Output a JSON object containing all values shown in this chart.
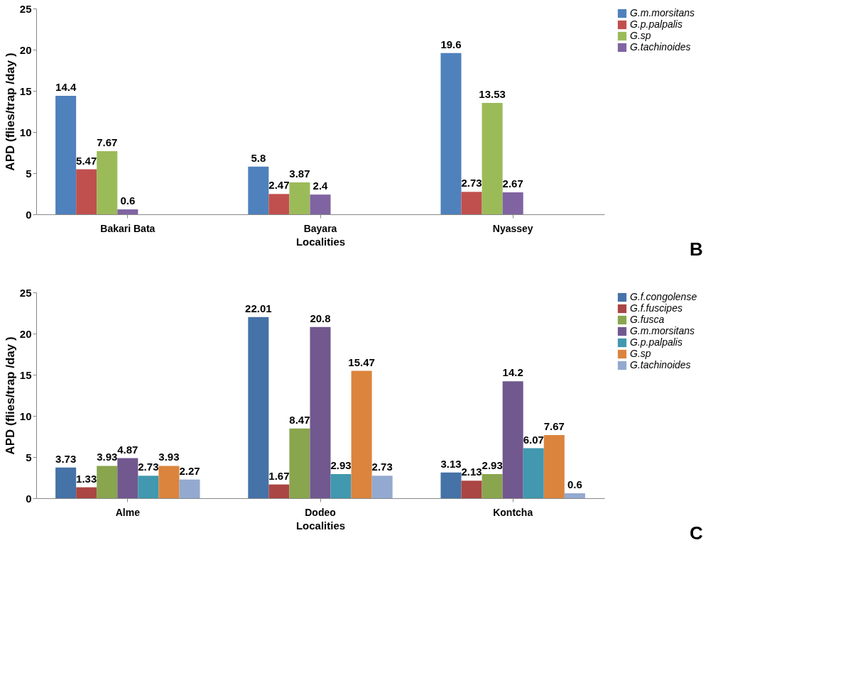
{
  "chart_data": [
    {
      "type": "bar",
      "xlabel": "Localities",
      "ylabel": "APD (flies/trap /day )",
      "categories": [
        "Bakari Bata",
        "Bayara",
        "Nyassey"
      ],
      "ylim": [
        0,
        25
      ],
      "yticks": [
        0,
        5,
        10,
        15,
        20,
        25
      ],
      "grid": false,
      "legend": "top right",
      "data_labels": true,
      "annotations": [
        "B"
      ],
      "series": [
        {
          "name": "G.m.morsitans",
          "color": "#4f81bd",
          "values": [
            14.4,
            5.8,
            19.6
          ]
        },
        {
          "name": "G.p.palpalis",
          "color": "#c0504d",
          "values": [
            5.47,
            2.47,
            2.73
          ]
        },
        {
          "name": "G.sp",
          "color": "#9bbb59",
          "values": [
            7.67,
            3.87,
            13.53
          ]
        },
        {
          "name": "G.tachinoides",
          "color": "#8064a2",
          "values": [
            0.6,
            2.4,
            2.67
          ]
        }
      ]
    },
    {
      "type": "bar",
      "xlabel": "Localities",
      "ylabel": "APD (flies/trap /day )",
      "categories": [
        "Alme",
        "Dodeo",
        "Kontcha"
      ],
      "ylim": [
        0,
        25
      ],
      "yticks": [
        0,
        5,
        10,
        15,
        20,
        25
      ],
      "grid": false,
      "legend": "top right",
      "data_labels": true,
      "annotations": [
        "C"
      ],
      "series": [
        {
          "name": "G.f.congolense",
          "color": "#4572a7",
          "values": [
            3.73,
            22.01,
            3.13
          ]
        },
        {
          "name": "G.f.fuscipes",
          "color": "#aa4643",
          "values": [
            1.33,
            1.67,
            2.13
          ]
        },
        {
          "name": "G.fusca",
          "color": "#89a54e",
          "values": [
            3.93,
            8.47,
            2.93
          ]
        },
        {
          "name": "G.m.morsitans",
          "color": "#71588f",
          "values": [
            4.87,
            20.8,
            14.2
          ]
        },
        {
          "name": "G.p.palpalis",
          "color": "#4198af",
          "values": [
            2.73,
            2.93,
            6.07
          ]
        },
        {
          "name": "G.sp",
          "color": "#db843d",
          "values": [
            3.93,
            15.47,
            7.67
          ]
        },
        {
          "name": "G.tachinoides",
          "color": "#93a9cf",
          "values": [
            2.27,
            2.73,
            0.6
          ]
        }
      ]
    }
  ]
}
